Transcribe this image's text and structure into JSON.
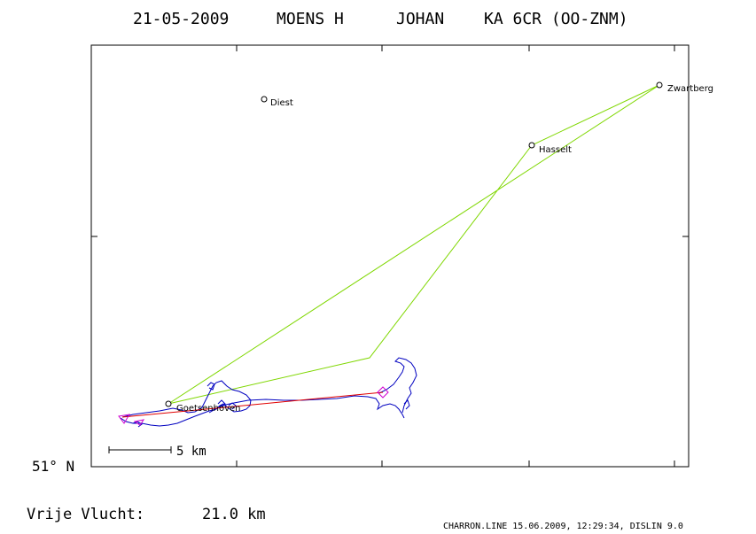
{
  "header": {
    "date": "21-05-2009",
    "pilot_surname": "MOENS H",
    "pilot_firstname": "JOHAN",
    "glider": "KA 6CR (OO-ZNM)"
  },
  "map": {
    "latitude_label": "51° N",
    "scale_label": "5 km",
    "places": [
      {
        "name": "Diest"
      },
      {
        "name": "Hasselt"
      },
      {
        "name": "Zwartberg"
      },
      {
        "name": "Goetsenhoven"
      }
    ],
    "colors": {
      "task_line": "#7fd700",
      "track": "#0000c0",
      "free_flight_line": "#e00000",
      "markers": "#d000d0",
      "frame": "#000000"
    }
  },
  "footer": {
    "result_label": "Vrije Vlucht:",
    "result_value": "21.0 km",
    "credit": "CHARRON.LINE 15.06.2009, 12:29:34, DISLIN 9.0"
  }
}
